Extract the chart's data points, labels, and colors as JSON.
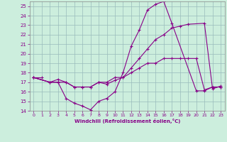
{
  "xlabel": "Windchill (Refroidissement éolien,°C)",
  "xlim": [
    -0.5,
    23.5
  ],
  "ylim": [
    14,
    25.5
  ],
  "xticks": [
    0,
    1,
    2,
    3,
    4,
    5,
    6,
    7,
    8,
    9,
    10,
    11,
    12,
    13,
    14,
    15,
    16,
    17,
    18,
    19,
    20,
    21,
    22,
    23
  ],
  "yticks": [
    14,
    15,
    16,
    17,
    18,
    19,
    20,
    21,
    22,
    23,
    24,
    25
  ],
  "line_color": "#880088",
  "bg_color": "#cceedd",
  "grid_color": "#99bbbb",
  "line1": {
    "x": [
      0,
      1
    ],
    "y": [
      17.5,
      17.5
    ]
  },
  "line2": {
    "x": [
      0,
      2,
      3,
      4,
      5,
      6,
      7,
      8,
      9,
      10,
      11,
      12,
      13,
      14,
      15,
      16,
      17,
      20,
      21,
      22,
      23
    ],
    "y": [
      17.5,
      17.0,
      17.0,
      15.3,
      14.8,
      14.5,
      14.1,
      15.0,
      15.3,
      16.0,
      18.0,
      20.8,
      22.5,
      24.6,
      25.2,
      25.5,
      23.2,
      16.1,
      16.1,
      16.5,
      16.5
    ]
  },
  "line3": {
    "x": [
      0,
      2,
      3,
      4,
      5,
      6,
      7,
      8,
      9,
      10,
      11,
      12,
      13,
      14,
      15,
      16,
      17,
      18,
      19,
      21,
      22,
      23
    ],
    "y": [
      17.5,
      17.0,
      17.3,
      17.0,
      16.5,
      16.5,
      16.5,
      17.0,
      16.8,
      17.2,
      17.5,
      18.5,
      19.5,
      20.5,
      21.5,
      22.0,
      22.7,
      22.9,
      23.1,
      23.2,
      16.3,
      16.6
    ]
  },
  "line4": {
    "x": [
      0,
      2,
      3,
      4,
      5,
      6,
      7,
      8,
      9,
      10,
      11,
      12,
      13,
      14,
      15,
      16,
      17,
      18,
      19,
      20,
      21,
      22,
      23
    ],
    "y": [
      17.5,
      17.0,
      17.0,
      17.0,
      16.5,
      16.5,
      16.5,
      17.0,
      17.0,
      17.5,
      17.5,
      18.0,
      18.5,
      19.0,
      19.0,
      19.5,
      19.5,
      19.5,
      19.5,
      19.5,
      16.2,
      16.5,
      16.5
    ]
  }
}
